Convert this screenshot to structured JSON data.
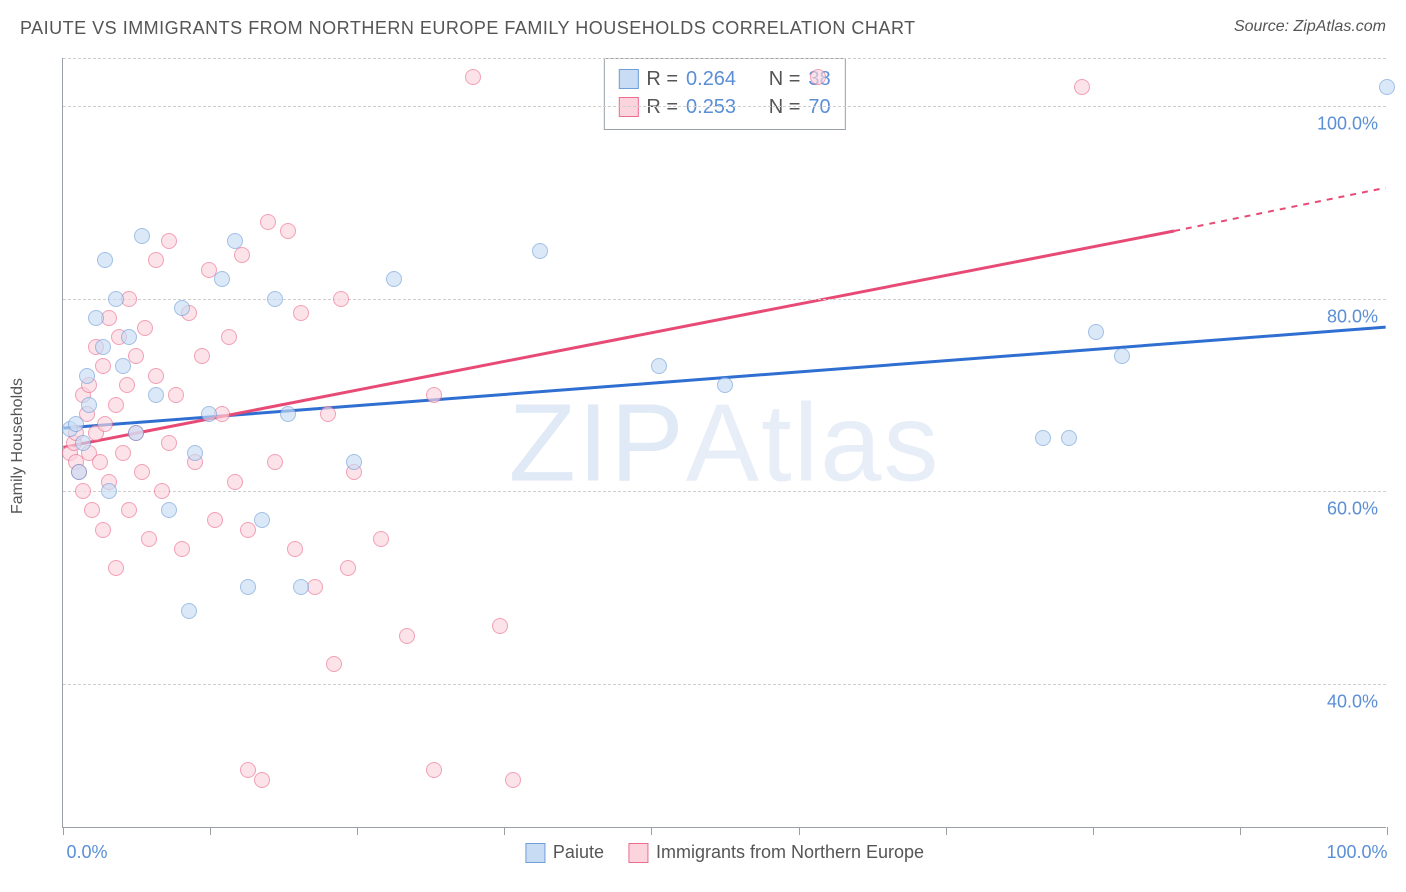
{
  "title": "PAIUTE VS IMMIGRANTS FROM NORTHERN EUROPE FAMILY HOUSEHOLDS CORRELATION CHART",
  "source": "Source: ZipAtlas.com",
  "ylabel": "Family Households",
  "watermark_a": "ZIP",
  "watermark_b": "Atlas",
  "chart": {
    "type": "scatter",
    "xlim": [
      0,
      100
    ],
    "ylim": [
      25,
      105
    ],
    "x_ticks": [
      0,
      11.1,
      22.2,
      33.3,
      44.4,
      55.6,
      66.7,
      77.8,
      88.9,
      100
    ],
    "x_tick_labels": {
      "0": "0.0%",
      "100": "100.0%"
    },
    "y_gridlines": [
      40,
      60,
      80,
      100,
      105
    ],
    "y_tick_labels": {
      "40": "40.0%",
      "60": "60.0%",
      "80": "80.0%",
      "100": "100.0%"
    },
    "background_color": "#ffffff",
    "grid_color": "#cfcfcf",
    "axis_color": "#9aa0a6",
    "tick_label_color": "#5a8fd6",
    "marker_radius": 8,
    "marker_stroke_width": 1.5,
    "series": [
      {
        "name": "Paiute",
        "fill": "#c8dcf4",
        "stroke": "#6f9ed9",
        "fill_opacity": 0.65,
        "r_value": "0.264",
        "n_value": "38",
        "regression": {
          "x1": 0,
          "y1": 66.5,
          "x2": 100,
          "y2": 77.0,
          "color": "#2f6fd1",
          "width": 3
        },
        "points": [
          [
            0.5,
            66.5
          ],
          [
            1,
            67
          ],
          [
            1.2,
            62
          ],
          [
            1.5,
            65
          ],
          [
            1.8,
            72
          ],
          [
            2,
            69
          ],
          [
            2.5,
            78
          ],
          [
            3,
            75
          ],
          [
            3.2,
            84
          ],
          [
            3.5,
            60
          ],
          [
            4,
            80
          ],
          [
            4.5,
            73
          ],
          [
            5,
            76
          ],
          [
            5.5,
            66
          ],
          [
            6,
            86.5
          ],
          [
            7,
            70
          ],
          [
            8,
            58
          ],
          [
            9,
            79
          ],
          [
            9.5,
            47.5
          ],
          [
            10,
            64
          ],
          [
            11,
            68
          ],
          [
            12,
            82
          ],
          [
            13,
            86
          ],
          [
            14,
            50
          ],
          [
            15,
            57
          ],
          [
            16,
            80
          ],
          [
            17,
            68
          ],
          [
            18,
            50
          ],
          [
            22,
            63
          ],
          [
            25,
            82
          ],
          [
            36,
            85
          ],
          [
            45,
            73
          ],
          [
            50,
            71
          ],
          [
            74,
            65.5
          ],
          [
            76,
            65.5
          ],
          [
            78,
            76.5
          ],
          [
            80,
            74
          ],
          [
            100,
            102
          ]
        ]
      },
      {
        "name": "Immigrants from Northern Europe",
        "fill": "#fbd4de",
        "stroke": "#ec6e8d",
        "fill_opacity": 0.65,
        "r_value": "0.253",
        "n_value": "70",
        "regression": {
          "x1": 0,
          "y1": 64.5,
          "x2": 84,
          "y2": 87.0,
          "color": "#e84a76",
          "width": 3,
          "dash_x1": 84,
          "dash_y1": 87.0,
          "dash_x2": 100,
          "dash_y2": 91.5
        },
        "points": [
          [
            0.5,
            64
          ],
          [
            0.8,
            65
          ],
          [
            1,
            66
          ],
          [
            1,
            63
          ],
          [
            1.2,
            62
          ],
          [
            1.5,
            70
          ],
          [
            1.5,
            60
          ],
          [
            1.8,
            68
          ],
          [
            2,
            64
          ],
          [
            2,
            71
          ],
          [
            2.2,
            58
          ],
          [
            2.5,
            66
          ],
          [
            2.5,
            75
          ],
          [
            2.8,
            63
          ],
          [
            3,
            73
          ],
          [
            3,
            56
          ],
          [
            3.2,
            67
          ],
          [
            3.5,
            78
          ],
          [
            3.5,
            61
          ],
          [
            4,
            69
          ],
          [
            4,
            52
          ],
          [
            4.2,
            76
          ],
          [
            4.5,
            64
          ],
          [
            4.8,
            71
          ],
          [
            5,
            80
          ],
          [
            5,
            58
          ],
          [
            5.5,
            66
          ],
          [
            5.5,
            74
          ],
          [
            6,
            62
          ],
          [
            6.2,
            77
          ],
          [
            6.5,
            55
          ],
          [
            7,
            72
          ],
          [
            7,
            84
          ],
          [
            7.5,
            60
          ],
          [
            8,
            65
          ],
          [
            8,
            86
          ],
          [
            8.5,
            70
          ],
          [
            9,
            54
          ],
          [
            9.5,
            78.5
          ],
          [
            10,
            63
          ],
          [
            10.5,
            74
          ],
          [
            11,
            83
          ],
          [
            11.5,
            57
          ],
          [
            12,
            68
          ],
          [
            12.5,
            76
          ],
          [
            13,
            61
          ],
          [
            13.5,
            84.5
          ],
          [
            14,
            56
          ],
          [
            14,
            31
          ],
          [
            15,
            30
          ],
          [
            15.5,
            88
          ],
          [
            16,
            63
          ],
          [
            17,
            87
          ],
          [
            17.5,
            54
          ],
          [
            18,
            78.5
          ],
          [
            19,
            50
          ],
          [
            20,
            68
          ],
          [
            20.5,
            42
          ],
          [
            21,
            80
          ],
          [
            21.5,
            52
          ],
          [
            22,
            62
          ],
          [
            24,
            55
          ],
          [
            26,
            45
          ],
          [
            28,
            70
          ],
          [
            28,
            31
          ],
          [
            31,
            103
          ],
          [
            33,
            46
          ],
          [
            34,
            30
          ],
          [
            57,
            103
          ],
          [
            77,
            102
          ]
        ]
      }
    ]
  },
  "stats_box": {
    "r_label": "R =",
    "n_label": "N ="
  },
  "legend": {
    "items": [
      {
        "label": "Paiute",
        "fill": "#c8dcf4",
        "stroke": "#6f9ed9"
      },
      {
        "label": "Immigrants from Northern Europe",
        "fill": "#fbd4de",
        "stroke": "#ec6e8d"
      }
    ]
  }
}
